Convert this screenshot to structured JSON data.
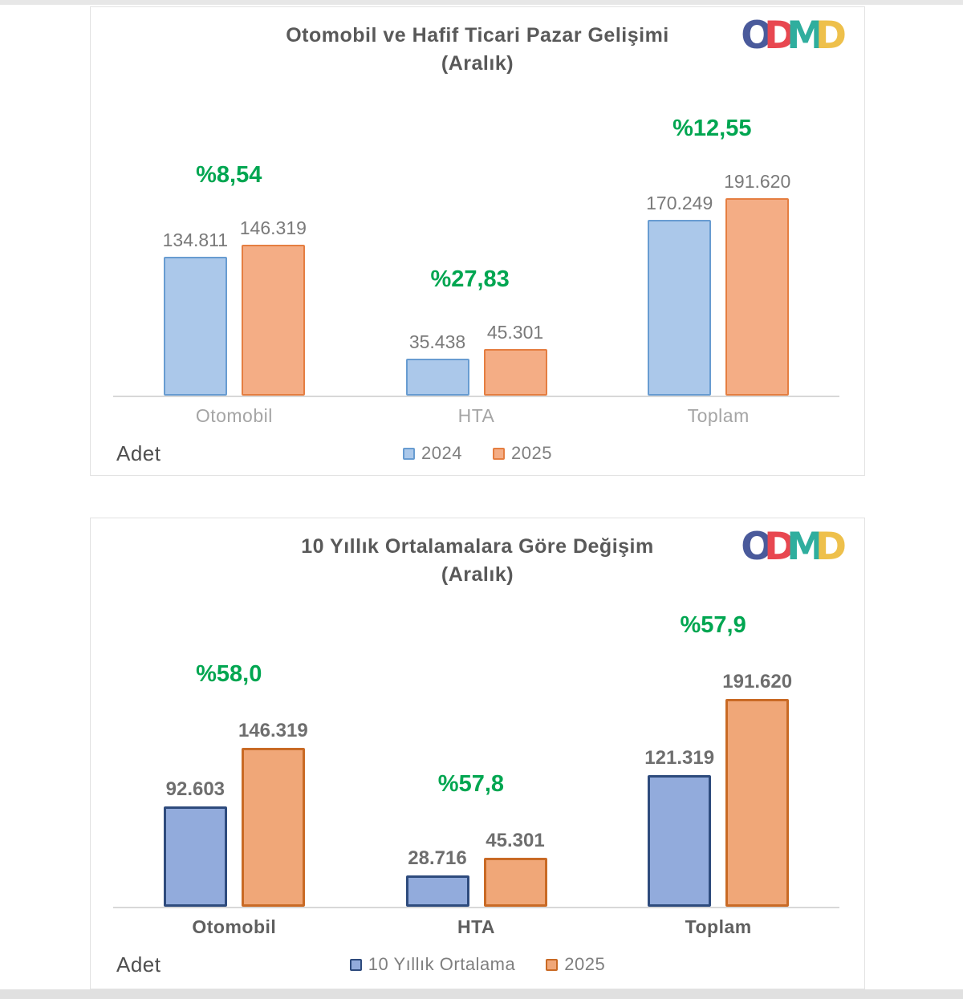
{
  "logo": {
    "name": "ODMD",
    "letters": [
      {
        "char": "O",
        "color": "#4a5a9b"
      },
      {
        "char": "D",
        "color": "#e84750"
      },
      {
        "char": "M",
        "color": "#2fae9e"
      },
      {
        "char": "D",
        "color": "#eec04b"
      }
    ]
  },
  "styles": {
    "percent_color": "#00a651",
    "title_color": "#595959",
    "axis_color": "#d8d8d8"
  },
  "chart_data": [
    {
      "type": "bar",
      "title": "Otomobil ve Hafif Ticari Pazar Gelişimi",
      "subtitle": "(Aralık)",
      "xlabel": "",
      "ylabel": "Adet",
      "categories": [
        "Otomobil",
        "HTA",
        "Toplam"
      ],
      "series": [
        {
          "name": "2024",
          "values": [
            134811,
            35438,
            170249
          ],
          "value_labels": [
            "134.811",
            "35.438",
            "170.249"
          ],
          "fill": "#abc8ea",
          "border": "#689cd1"
        },
        {
          "name": "2025",
          "values": [
            146319,
            45301,
            191620
          ],
          "value_labels": [
            "146.319",
            "45.301",
            "191.620"
          ],
          "fill": "#f4ad85",
          "border": "#e57e41"
        }
      ],
      "percent_change_labels": [
        "%8,54",
        "%27,83",
        "%12,55"
      ],
      "ylim": [
        0,
        280000
      ],
      "grid": false,
      "legend_position": "bottom-center"
    },
    {
      "type": "bar",
      "title": "10 Yıllık Ortalamalara Göre Değişim",
      "subtitle": "(Aralık)",
      "xlabel": "",
      "ylabel": "Adet",
      "categories": [
        "Otomobil",
        "HTA",
        "Toplam"
      ],
      "series": [
        {
          "name": "10 Yıllık Ortalama",
          "values": [
            92603,
            28716,
            121319
          ],
          "value_labels": [
            "92.603",
            "28.716",
            "121.319"
          ],
          "fill": "#92abdc",
          "border": "#2e4b7d"
        },
        {
          "name": "2025",
          "values": [
            146319,
            45301,
            191620
          ],
          "value_labels": [
            "146.319",
            "45.301",
            "191.620"
          ],
          "fill": "#f0a778",
          "border": "#c96a25"
        }
      ],
      "percent_change_labels": [
        "%58,0",
        "%57,8",
        "%57,9"
      ],
      "ylim": [
        0,
        266000
      ],
      "grid": false,
      "legend_position": "bottom-center"
    }
  ]
}
